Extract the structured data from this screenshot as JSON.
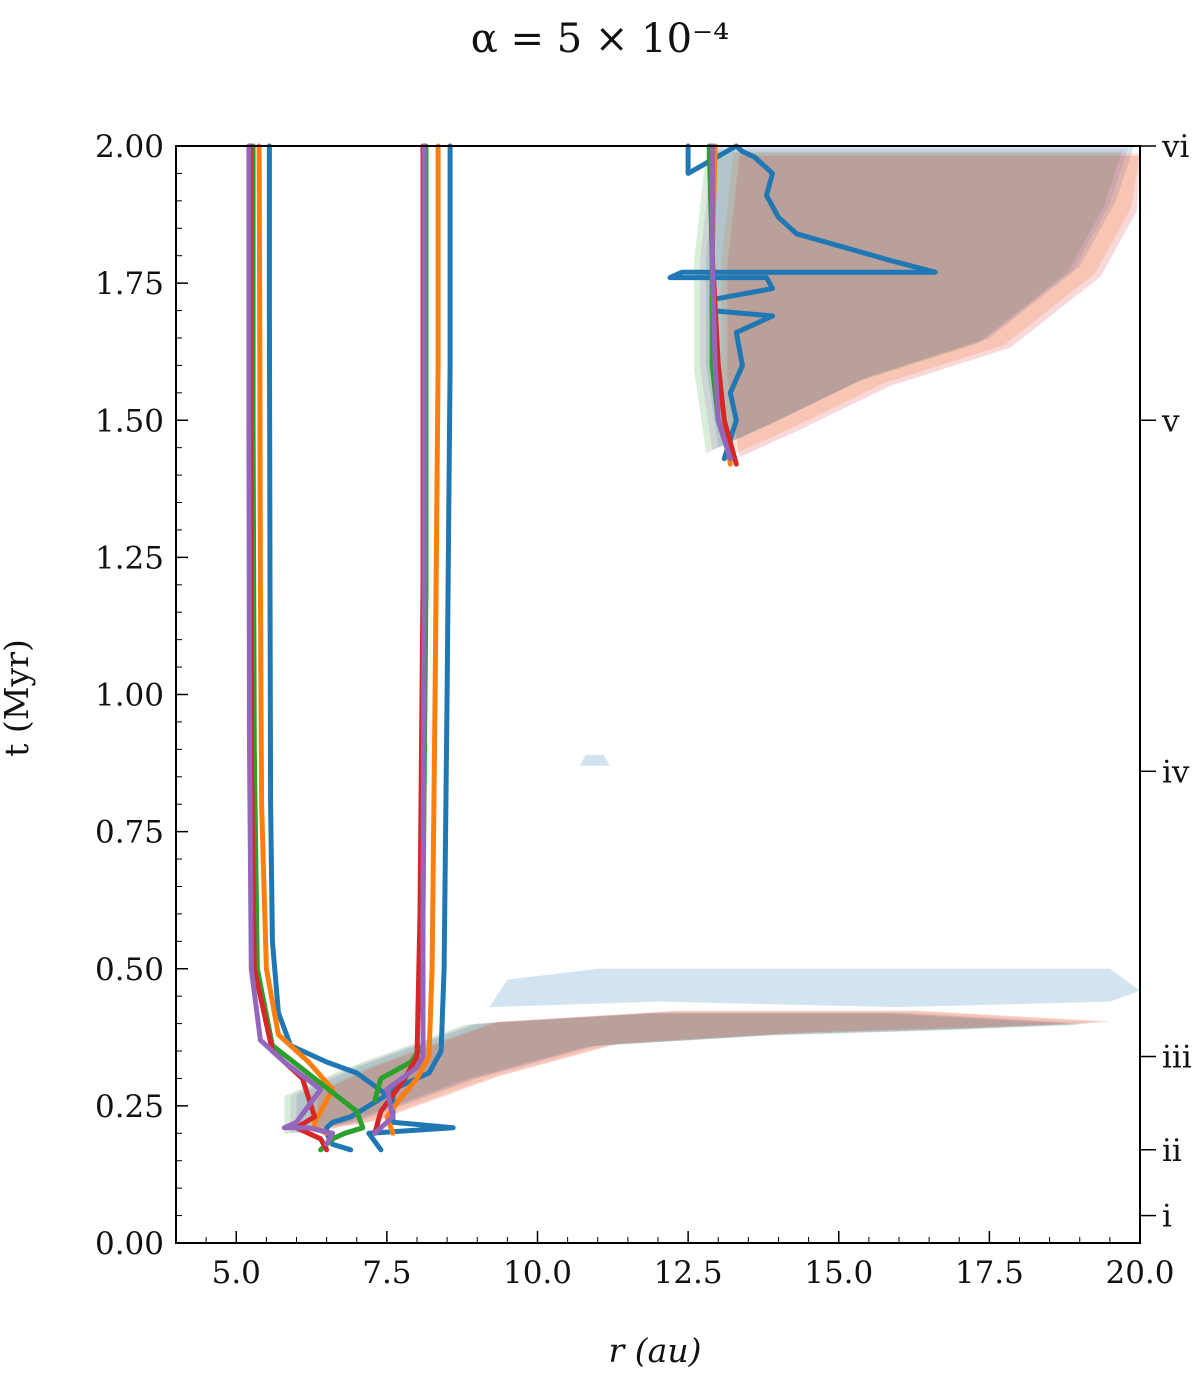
{
  "chart_data": {
    "type": "line",
    "title": "α = 5 × 10⁻⁴",
    "xlabel": "r (au)",
    "ylabel": "t (Myr)",
    "xlim": [
      4.0,
      20.0
    ],
    "ylim": [
      0.0,
      2.0
    ],
    "xticks": [
      "5.0",
      "7.5",
      "10.0",
      "12.5",
      "15.0",
      "17.5",
      "20.0"
    ],
    "xtick_values": [
      5.0,
      7.5,
      10.0,
      12.5,
      15.0,
      17.5,
      20.0
    ],
    "yticks": [
      "0.00",
      "0.25",
      "0.50",
      "0.75",
      "1.00",
      "1.25",
      "1.50",
      "1.75",
      "2.00"
    ],
    "ytick_values": [
      0.0,
      0.25,
      0.5,
      0.75,
      1.0,
      1.25,
      1.5,
      1.75,
      2.0
    ],
    "grid": false,
    "stages": [
      {
        "label": "i",
        "t": 0.05
      },
      {
        "label": "ii",
        "t": 0.17
      },
      {
        "label": "iii",
        "t": 0.34
      },
      {
        "label": "iv",
        "t": 0.86
      },
      {
        "label": "v",
        "t": 1.5
      },
      {
        "label": "vi",
        "t": 2.0
      }
    ],
    "colors": {
      "blue": "#1f77b4",
      "orange": "#ff7f0e",
      "green": "#2ca02c",
      "red": "#d62728",
      "purple": "#9467bd"
    },
    "series": [
      {
        "color": "#1f77b4",
        "inner": {
          "x": [
            6.9,
            6.6,
            6.5,
            6.5,
            6.5,
            6.6,
            6.9,
            7.5,
            7.0,
            6.5,
            5.9,
            5.7,
            5.6,
            5.57,
            5.56,
            5.55,
            5.55
          ],
          "y": [
            0.17,
            0.18,
            0.2,
            0.21,
            0.21,
            0.22,
            0.23,
            0.27,
            0.31,
            0.33,
            0.36,
            0.42,
            0.55,
            0.8,
            1.2,
            1.7,
            2.0
          ]
        },
        "middle": {
          "x": [
            7.4,
            7.2,
            8.6,
            7.6,
            7.6,
            8.2,
            8.4,
            8.45,
            8.5,
            8.55,
            8.55
          ],
          "y": [
            0.17,
            0.2,
            0.21,
            0.22,
            0.28,
            0.31,
            0.35,
            0.5,
            1.0,
            1.6,
            2.0
          ]
        },
        "outer": {
          "x": [
            13.1,
            13.3,
            13.2,
            13.4,
            13.3,
            13.9,
            12.9,
            12.9,
            13.9,
            13.8,
            12.2,
            12.4,
            16.6,
            15.9,
            14.3,
            14.0,
            13.8,
            13.9,
            13.6,
            13.4,
            13.3,
            12.5,
            12.5
          ],
          "y": [
            1.43,
            1.5,
            1.55,
            1.6,
            1.66,
            1.69,
            1.7,
            1.72,
            1.74,
            1.76,
            1.76,
            1.77,
            1.77,
            1.79,
            1.84,
            1.87,
            1.91,
            1.95,
            1.98,
            1.99,
            2.0,
            1.95,
            2.0
          ]
        }
      },
      {
        "color": "#ff7f0e",
        "inner": {
          "x": [
            6.5,
            6.3,
            6.3,
            6.4,
            6.6,
            6.2,
            5.7,
            5.5,
            5.42,
            5.4,
            5.39,
            5.38
          ],
          "y": [
            0.2,
            0.21,
            0.22,
            0.24,
            0.28,
            0.33,
            0.38,
            0.5,
            0.8,
            1.2,
            1.7,
            2.0
          ]
        },
        "middle": {
          "x": [
            7.6,
            7.5,
            7.7,
            8.0,
            8.2,
            8.25,
            8.3,
            8.35,
            8.35
          ],
          "y": [
            0.2,
            0.23,
            0.26,
            0.3,
            0.34,
            0.5,
            1.0,
            1.6,
            2.0
          ]
        },
        "outer": {
          "x": [
            13.2,
            13.1,
            13.0,
            12.9,
            12.95
          ],
          "y": [
            1.42,
            1.5,
            1.6,
            1.8,
            2.0
          ]
        }
      },
      {
        "color": "#2ca02c",
        "inner": {
          "x": [
            6.4,
            6.6,
            6.8,
            7.1,
            7.0,
            6.3,
            5.6,
            5.35,
            5.3,
            5.28,
            5.28
          ],
          "y": [
            0.17,
            0.19,
            0.2,
            0.21,
            0.24,
            0.3,
            0.36,
            0.5,
            0.9,
            1.5,
            2.0
          ]
        },
        "middle": {
          "x": [
            7.3,
            7.4,
            7.9,
            8.1,
            8.1,
            8.15,
            8.15
          ],
          "y": [
            0.26,
            0.3,
            0.33,
            0.36,
            0.6,
            1.2,
            2.0
          ]
        },
        "outer": {
          "x": [
            13.2,
            13.0,
            12.9,
            12.9,
            12.85
          ],
          "y": [
            1.43,
            1.5,
            1.6,
            1.8,
            2.0
          ]
        }
      },
      {
        "color": "#d62728",
        "inner": {
          "x": [
            6.5,
            6.4,
            6.2,
            6.0,
            6.3,
            6.1,
            5.6,
            5.3,
            5.25,
            5.24,
            5.24
          ],
          "y": [
            0.17,
            0.19,
            0.2,
            0.21,
            0.23,
            0.3,
            0.35,
            0.5,
            0.9,
            1.5,
            2.0
          ]
        },
        "middle": {
          "x": [
            7.3,
            7.4,
            7.8,
            8.0,
            8.05,
            8.1,
            8.1
          ],
          "y": [
            0.2,
            0.24,
            0.3,
            0.34,
            0.6,
            1.2,
            2.0
          ]
        },
        "outer": {
          "x": [
            13.3,
            13.1,
            13.0,
            12.9,
            12.9
          ],
          "y": [
            1.42,
            1.5,
            1.6,
            1.8,
            2.0
          ]
        }
      },
      {
        "color": "#9467bd",
        "inner": {
          "x": [
            6.5,
            6.6,
            6.2,
            5.8,
            6.0,
            6.4,
            5.8,
            5.4,
            5.25,
            5.22,
            5.21,
            5.21
          ],
          "y": [
            0.18,
            0.2,
            0.21,
            0.21,
            0.22,
            0.28,
            0.33,
            0.37,
            0.5,
            0.9,
            1.5,
            2.0
          ]
        },
        "middle": {
          "x": [
            7.3,
            7.6,
            7.5,
            8.0,
            8.1,
            8.1,
            8.12,
            8.12
          ],
          "y": [
            0.2,
            0.23,
            0.28,
            0.32,
            0.34,
            0.6,
            1.2,
            2.0
          ]
        },
        "outer": {
          "x": [
            13.2,
            13.0,
            12.95,
            12.9,
            12.9
          ],
          "y": [
            1.43,
            1.5,
            1.6,
            1.8,
            2.0
          ]
        }
      }
    ]
  }
}
